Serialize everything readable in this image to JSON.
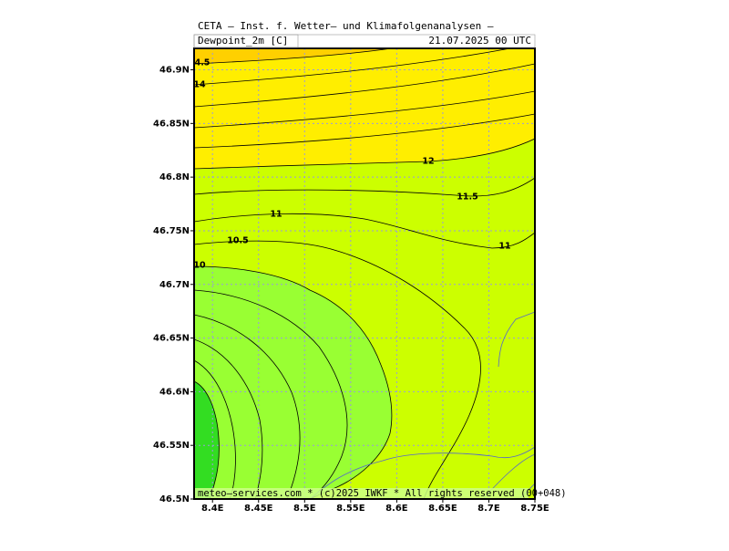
{
  "map": {
    "title": "CETA — Inst. f. Wetter— und Klimafolgenanalysen —",
    "field": "Dewpoint_2m [C]",
    "valid": "21.07.2025 00 UTC",
    "footer": "meteo—services.com * (c)2025 IWKF * All rights reserved (00+048)",
    "xlim": [
      8.38,
      8.75
    ],
    "ylim": [
      46.5,
      46.92
    ],
    "xticks": [
      {
        "value": 8.4,
        "label": "8.4E"
      },
      {
        "value": 8.45,
        "label": "8.45E"
      },
      {
        "value": 8.5,
        "label": "8.5E"
      },
      {
        "value": 8.55,
        "label": "8.55E"
      },
      {
        "value": 8.6,
        "label": "8.6E"
      },
      {
        "value": 8.65,
        "label": "8.65E"
      },
      {
        "value": 8.7,
        "label": "8.7E"
      },
      {
        "value": 8.75,
        "label": "8.75E"
      }
    ],
    "yticks": [
      {
        "value": 46.5,
        "label": "46.5N"
      },
      {
        "value": 46.55,
        "label": "46.55N"
      },
      {
        "value": 46.6,
        "label": "46.6N"
      },
      {
        "value": 46.65,
        "label": "46.65N"
      },
      {
        "value": 46.7,
        "label": "46.7N"
      },
      {
        "value": 46.75,
        "label": "46.75N"
      },
      {
        "value": 46.8,
        "label": "46.8N"
      },
      {
        "value": 46.85,
        "label": "46.85N"
      },
      {
        "value": 46.9,
        "label": "46.9N"
      }
    ],
    "grid": true,
    "contour_labels": [
      "4.5",
      "14",
      "12",
      "11.5",
      "11",
      "10.5",
      "11",
      "10"
    ]
  }
}
